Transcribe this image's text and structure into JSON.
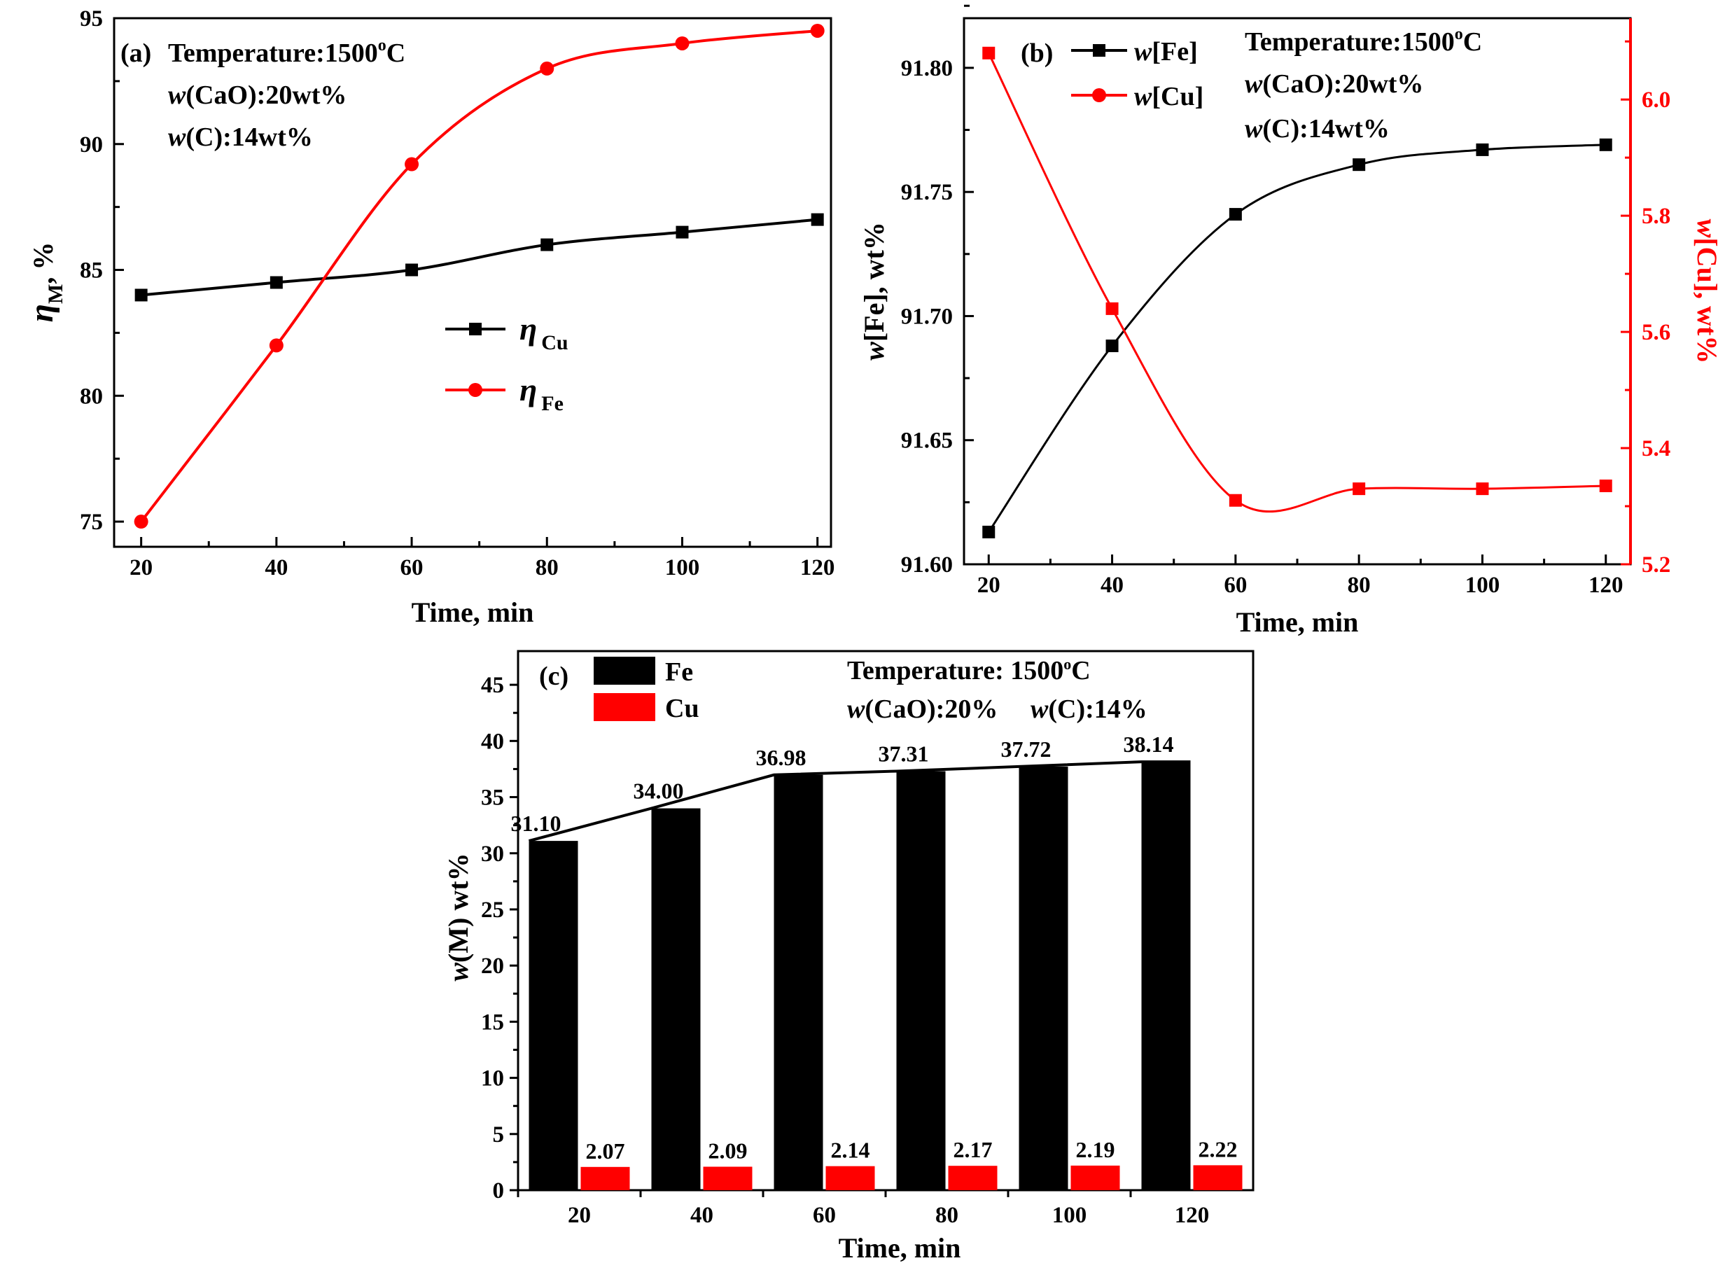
{
  "colors": {
    "black": "#000000",
    "red": "#ff0000"
  },
  "chart_data": [
    {
      "type": "line",
      "panel": "a",
      "panel_label": "(a)",
      "annotations": [
        "Temperature:1500",
        "o",
        "C",
        "w",
        "(CaO):20wt%",
        "w",
        "(C):14wt%"
      ],
      "x": [
        20,
        40,
        60,
        80,
        100,
        120
      ],
      "xlabel": "Time, min",
      "ylabel_symbol": "η",
      "ylabel_sub": "M",
      "ylabel_unit": ", %",
      "xlim": [
        16,
        122
      ],
      "ylim": [
        74,
        95
      ],
      "xticks": [
        20,
        40,
        60,
        80,
        100,
        120
      ],
      "yticks": [
        75,
        80,
        85,
        90,
        95
      ],
      "series": [
        {
          "name": "η Cu",
          "symbol": "η",
          "sub": "Cu",
          "marker": "square",
          "color": "#000000",
          "values": [
            84.0,
            84.5,
            85.0,
            86.0,
            86.5,
            87.0
          ]
        },
        {
          "name": "η Fe",
          "symbol": "η",
          "sub": "Fe",
          "marker": "circle",
          "color": "#ff0000",
          "values": [
            75.0,
            82.0,
            89.2,
            93.0,
            94.0,
            94.5
          ]
        }
      ],
      "legend_position": "center"
    },
    {
      "type": "line",
      "panel": "b",
      "panel_label": "(b)",
      "annotations": [
        "Temperature:1500",
        "o",
        "C",
        "w",
        "(CaO):20wt%",
        "w",
        "(C):14wt%"
      ],
      "x": [
        20,
        40,
        60,
        80,
        100,
        120
      ],
      "xlabel": "Time, min",
      "ylabel_left": [
        "w",
        "[Fe], wt%"
      ],
      "ylabel_right": [
        "w",
        "[Cu], wt%"
      ],
      "xlim": [
        16,
        124
      ],
      "ylim": [
        91.6,
        91.82
      ],
      "ylim_right": [
        5.2,
        6.14
      ],
      "xticks": [
        20,
        40,
        60,
        80,
        100,
        120
      ],
      "yticks": [
        "91.60",
        "91.65",
        "91.70",
        "91.75",
        "91.80"
      ],
      "yticks_right": [
        "5.2",
        "5.4",
        "5.6",
        "5.8",
        "6.0"
      ],
      "series": [
        {
          "name": "w[Fe]",
          "label_italic": "w",
          "label_rest": "[Fe]",
          "marker": "square",
          "color": "#000000",
          "axis": "left",
          "values": [
            91.613,
            91.688,
            91.741,
            91.761,
            91.767,
            91.769
          ]
        },
        {
          "name": "w[Cu]",
          "label_italic": "w",
          "label_rest": "[Cu]",
          "marker": "circle",
          "color": "#ff0000",
          "axis": "right",
          "values": [
            6.08,
            5.64,
            5.31,
            5.33,
            5.33,
            5.335
          ]
        }
      ],
      "legend_position": "top-left"
    },
    {
      "type": "bar",
      "panel": "c",
      "panel_label": "(c)",
      "annotations": [
        "Temperature: 1500",
        "o",
        "C",
        "w",
        "(CaO):20%",
        "w",
        "(C):14%"
      ],
      "categories": [
        "20",
        "40",
        "60",
        "80",
        "100",
        "120"
      ],
      "xlabel": "Time, min",
      "ylabel": [
        "w",
        "(M) wt%"
      ],
      "ylim": [
        0,
        48
      ],
      "yticks": [
        0,
        5,
        10,
        15,
        20,
        25,
        30,
        35,
        40,
        45
      ],
      "series": [
        {
          "name": "Fe",
          "color": "#000000",
          "values": [
            31.1,
            34.0,
            36.98,
            37.31,
            37.72,
            38.14
          ],
          "labels": [
            "31.10",
            "34.00",
            "36.98",
            "37.31",
            "37.72",
            "38.14"
          ]
        },
        {
          "name": "Cu",
          "color": "#ff0000",
          "values": [
            2.07,
            2.09,
            2.14,
            2.17,
            2.19,
            2.22
          ],
          "labels": [
            "2.07",
            "2.09",
            "2.14",
            "2.17",
            "2.19",
            "2.22"
          ]
        }
      ],
      "legend_position": "top-left"
    }
  ]
}
